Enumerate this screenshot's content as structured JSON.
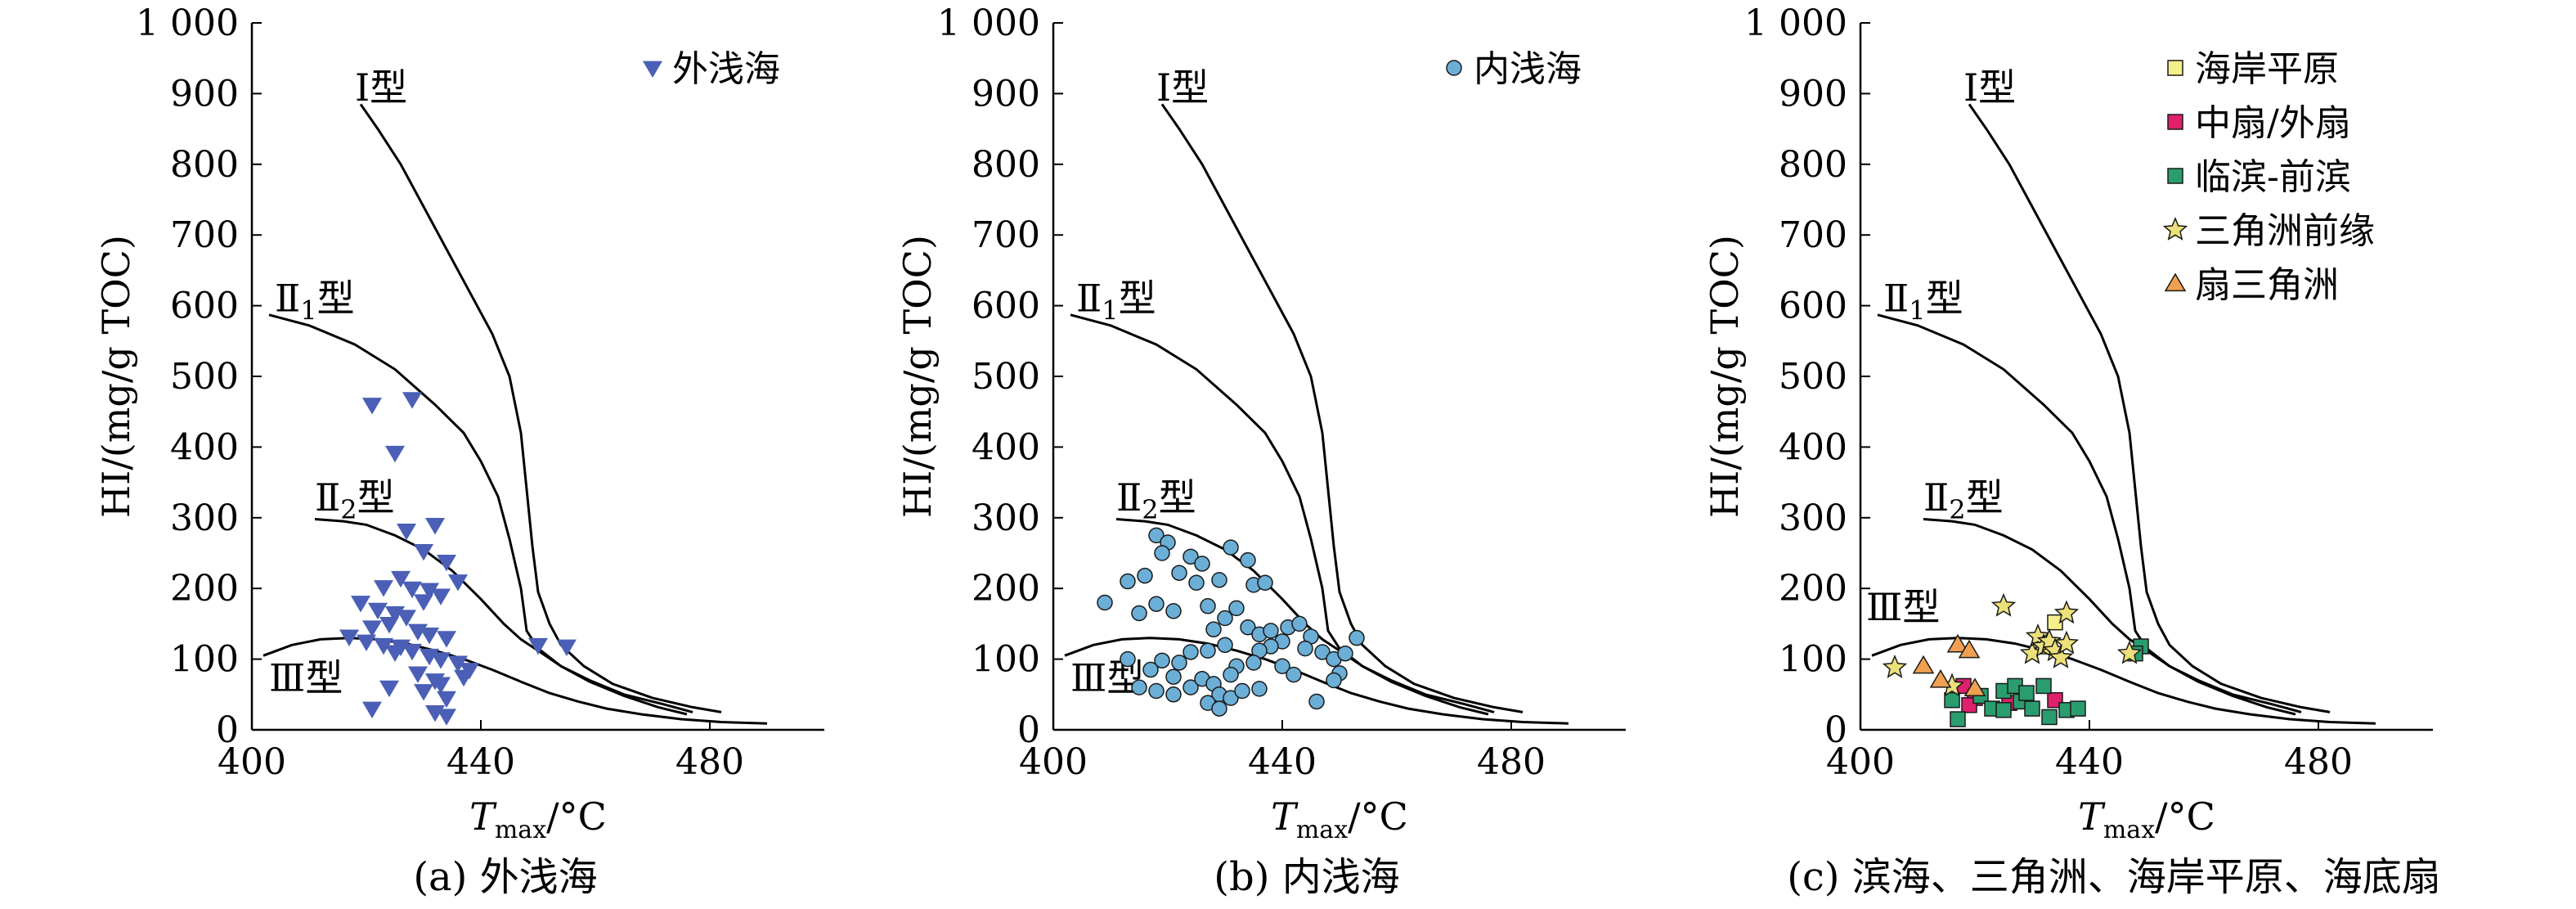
{
  "chart_data": [
    {
      "type": "scatter",
      "caption": "(a) 外浅海",
      "xlabel_main": "T",
      "xlabel_sub": "max",
      "xlabel_unit": "/°C",
      "ylabel": "HI/(mg/g TOC)",
      "xlim": [
        400,
        500
      ],
      "ylim": [
        0,
        1000
      ],
      "xticks": [
        "400",
        "440",
        "480"
      ],
      "yticks": [
        "0",
        "100",
        "200",
        "300",
        "400",
        "500",
        "600",
        "700",
        "800",
        "900",
        "1 000"
      ],
      "curve_labels": {
        "type1": "Ⅰ型",
        "type2_1_main": "Ⅱ",
        "type2_1_sub": "1",
        "type2_2_main": "Ⅱ",
        "type2_2_sub": "2",
        "type_suffix": "型",
        "type3": "Ⅲ型"
      },
      "legend": [
        {
          "name": "外浅海",
          "marker": "triangle-down",
          "color": "#4a5fb5"
        }
      ],
      "series": [
        {
          "name": "外浅海",
          "marker": "triangle-down",
          "color": "#4a5fb5",
          "points": [
            [
              421,
              460
            ],
            [
              428,
              468
            ],
            [
              425,
              392
            ],
            [
              427,
              282
            ],
            [
              432,
              290
            ],
            [
              430,
              253
            ],
            [
              434,
              238
            ],
            [
              436,
              210
            ],
            [
              426,
              215
            ],
            [
              423,
              202
            ],
            [
              428,
              200
            ],
            [
              431,
              198
            ],
            [
              433,
              190
            ],
            [
              430,
              182
            ],
            [
              419,
              180
            ],
            [
              422,
              170
            ],
            [
              425,
              165
            ],
            [
              427,
              160
            ],
            [
              424,
              150
            ],
            [
              421,
              145
            ],
            [
              429,
              140
            ],
            [
              431,
              135
            ],
            [
              434,
              130
            ],
            [
              417,
              132
            ],
            [
              420,
              125
            ],
            [
              423,
              120
            ],
            [
              426,
              118
            ],
            [
              428,
              112
            ],
            [
              425,
              110
            ],
            [
              431,
              105
            ],
            [
              433,
              100
            ],
            [
              436,
              95
            ],
            [
              438,
              85
            ],
            [
              437,
              75
            ],
            [
              432,
              70
            ],
            [
              429,
              80
            ],
            [
              433,
              65
            ],
            [
              430,
              55
            ],
            [
              424,
              60
            ],
            [
              421,
              30
            ],
            [
              432,
              25
            ],
            [
              434,
              20
            ],
            [
              434,
              45
            ],
            [
              450,
              120
            ],
            [
              455,
              118
            ]
          ]
        }
      ]
    },
    {
      "type": "scatter",
      "caption": "(b) 内浅海",
      "xlabel_main": "T",
      "xlabel_sub": "max",
      "xlabel_unit": "/°C",
      "ylabel": "HI/(mg/g TOC)",
      "xlim": [
        400,
        500
      ],
      "ylim": [
        0,
        1000
      ],
      "xticks": [
        "400",
        "440",
        "480"
      ],
      "yticks": [
        "0",
        "100",
        "200",
        "300",
        "400",
        "500",
        "600",
        "700",
        "800",
        "900",
        "1 000"
      ],
      "curve_labels": {
        "type1": "Ⅰ型",
        "type2_1_main": "Ⅱ",
        "type2_1_sub": "1",
        "type2_2_main": "Ⅱ",
        "type2_2_sub": "2",
        "type_suffix": "型",
        "type3": "Ⅲ型"
      },
      "legend": [
        {
          "name": "内浅海",
          "marker": "circle",
          "color": "#6baed6"
        }
      ],
      "series": [
        {
          "name": "内浅海",
          "marker": "circle",
          "color": "#6baed6",
          "points": [
            [
              418,
              275
            ],
            [
              420,
              265
            ],
            [
              419,
              250
            ],
            [
              424,
              245
            ],
            [
              426,
              235
            ],
            [
              431,
              258
            ],
            [
              434,
              240
            ],
            [
              416,
              218
            ],
            [
              413,
              210
            ],
            [
              422,
              222
            ],
            [
              425,
              208
            ],
            [
              429,
              212
            ],
            [
              435,
              205
            ],
            [
              437,
              208
            ],
            [
              409,
              180
            ],
            [
              418,
              178
            ],
            [
              421,
              168
            ],
            [
              415,
              165
            ],
            [
              427,
              175
            ],
            [
              430,
              158
            ],
            [
              432,
              172
            ],
            [
              428,
              142
            ],
            [
              434,
              145
            ],
            [
              436,
              135
            ],
            [
              438,
              140
            ],
            [
              441,
              145
            ],
            [
              443,
              150
            ],
            [
              445,
              132
            ],
            [
              444,
              115
            ],
            [
              447,
              110
            ],
            [
              449,
              100
            ],
            [
              451,
              108
            ],
            [
              453,
              130
            ],
            [
              450,
              80
            ],
            [
              449,
              70
            ],
            [
              440,
              125
            ],
            [
              438,
              118
            ],
            [
              436,
              112
            ],
            [
              435,
              95
            ],
            [
              432,
              90
            ],
            [
              430,
              120
            ],
            [
              427,
              112
            ],
            [
              424,
              110
            ],
            [
              422,
              95
            ],
            [
              419,
              98
            ],
            [
              417,
              85
            ],
            [
              413,
              100
            ],
            [
              415,
              60
            ],
            [
              418,
              55
            ],
            [
              421,
              50
            ],
            [
              424,
              60
            ],
            [
              426,
              72
            ],
            [
              428,
              65
            ],
            [
              429,
              50
            ],
            [
              431,
              45
            ],
            [
              433,
              55
            ],
            [
              436,
              58
            ],
            [
              427,
              38
            ],
            [
              429,
              30
            ],
            [
              446,
              40
            ],
            [
              440,
              90
            ],
            [
              442,
              78
            ],
            [
              431,
              78
            ],
            [
              421,
              75
            ]
          ]
        }
      ]
    },
    {
      "type": "scatter",
      "caption": "(c) 滨海、三角洲、海岸平原、海底扇",
      "xlabel_main": "T",
      "xlabel_sub": "max",
      "xlabel_unit": "/°C",
      "ylabel": "HI/(mg/g TOC)",
      "xlim": [
        400,
        500
      ],
      "ylim": [
        0,
        1000
      ],
      "xticks": [
        "400",
        "440",
        "480"
      ],
      "yticks": [
        "0",
        "100",
        "200",
        "300",
        "400",
        "500",
        "600",
        "700",
        "800",
        "900",
        "1 000"
      ],
      "curve_labels": {
        "type1": "Ⅰ型",
        "type2_1_main": "Ⅱ",
        "type2_1_sub": "1",
        "type2_2_main": "Ⅱ",
        "type2_2_sub": "2",
        "type_suffix": "型",
        "type3": "Ⅲ型"
      },
      "legend": [
        {
          "name": "海岸平原",
          "marker": "square",
          "color": "#f6f08c"
        },
        {
          "name": "中扇/外扇",
          "marker": "square",
          "color": "#e0206c"
        },
        {
          "name": "临滨-前滨",
          "marker": "square",
          "color": "#2a9d6e"
        },
        {
          "name": "三角洲前缘",
          "marker": "star",
          "color": "#ece07a"
        },
        {
          "name": "扇三角洲",
          "marker": "triangle-up",
          "color": "#f0a050"
        }
      ],
      "series": [
        {
          "name": "海岸平原",
          "marker": "square",
          "color": "#f6f08c",
          "points": [
            [
              434,
              152
            ],
            [
              432,
              118
            ]
          ]
        },
        {
          "name": "中扇/外扇",
          "marker": "square",
          "color": "#e0206c",
          "points": [
            [
              418,
              62
            ],
            [
              420,
              45
            ],
            [
              419,
              35
            ],
            [
              426,
              38
            ],
            [
              434,
              42
            ]
          ]
        },
        {
          "name": "临滨-前滨",
          "marker": "square",
          "color": "#2a9d6e",
          "points": [
            [
              416,
              42
            ],
            [
              417,
              15
            ],
            [
              421,
              48
            ],
            [
              423,
              30
            ],
            [
              425,
              55
            ],
            [
              427,
              62
            ],
            [
              428,
              40
            ],
            [
              430,
              30
            ],
            [
              432,
              62
            ],
            [
              433,
              18
            ],
            [
              436,
              28
            ],
            [
              438,
              30
            ],
            [
              425,
              28
            ],
            [
              429,
              52
            ],
            [
              449,
              118
            ],
            [
              448,
              108
            ]
          ]
        },
        {
          "name": "三角洲前缘",
          "marker": "star",
          "color": "#ece07a",
          "points": [
            [
              406,
              88
            ],
            [
              416,
              62
            ],
            [
              425,
              175
            ],
            [
              430,
              108
            ],
            [
              431,
              132
            ],
            [
              432,
              118
            ],
            [
              433,
              125
            ],
            [
              434,
              112
            ],
            [
              435,
              102
            ],
            [
              436,
              165
            ],
            [
              436,
              122
            ],
            [
              447,
              108
            ]
          ]
        },
        {
          "name": "扇三角洲",
          "marker": "triangle-up",
          "color": "#f0a050",
          "points": [
            [
              411,
              90
            ],
            [
              414,
              70
            ],
            [
              417,
              120
            ],
            [
              419,
              112
            ],
            [
              420,
              58
            ]
          ]
        }
      ]
    }
  ]
}
